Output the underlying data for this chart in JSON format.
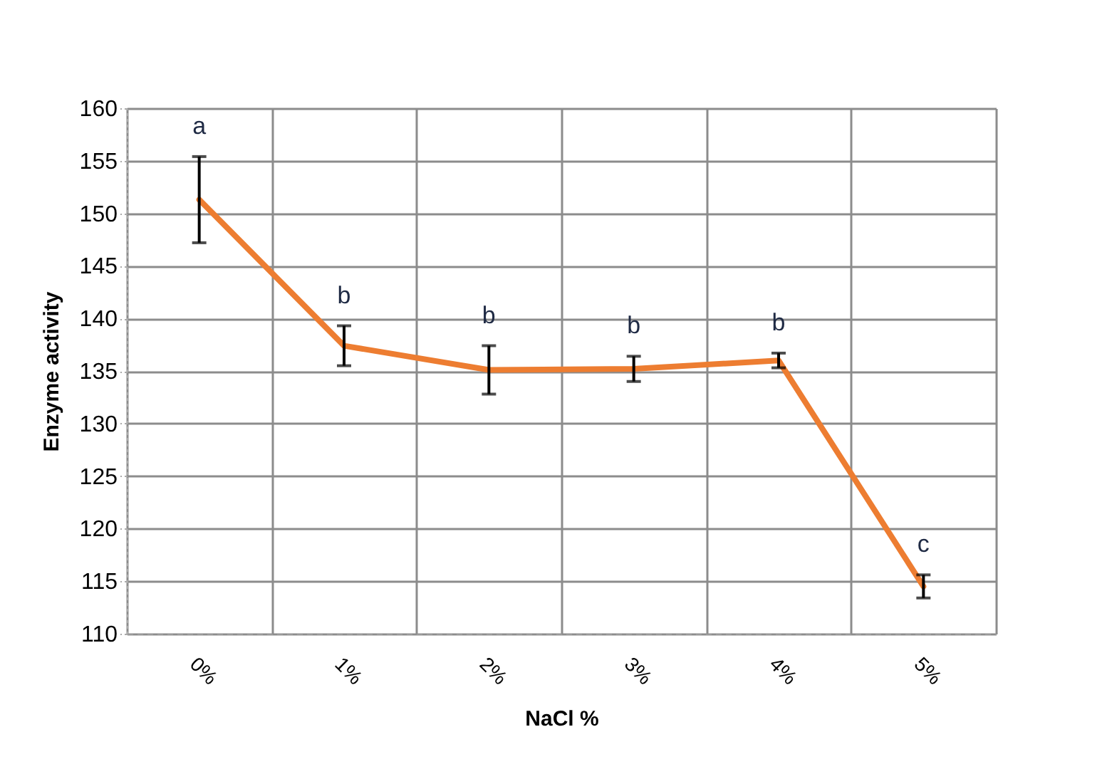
{
  "chart_data": {
    "type": "line",
    "xlabel": "NaCl %",
    "ylabel": "Enzyme activity",
    "categories": [
      "0%",
      "1%",
      "2%",
      "3%",
      "4%",
      "5%"
    ],
    "series": [
      {
        "color": "#ed7d31",
        "values": [
          151.3,
          137.4,
          135.1,
          135.2,
          136.0,
          114.5
        ],
        "errors": [
          4.1,
          1.9,
          2.3,
          1.2,
          0.7,
          1.1
        ]
      }
    ],
    "ylim": [
      110,
      160
    ],
    "yticks": [
      110,
      115,
      120,
      125,
      130,
      135,
      140,
      145,
      150,
      155,
      160
    ],
    "grid": true,
    "marker": "none",
    "line_style": "solid",
    "annotations": [
      {
        "text": "a",
        "x": "0%",
        "y": 155.4
      },
      {
        "text": "b",
        "x": "1%",
        "y": 139.3
      },
      {
        "text": "b",
        "x": "2%",
        "y": 137.4
      },
      {
        "text": "b",
        "x": "3%",
        "y": 136.4
      },
      {
        "text": "b",
        "x": "4%",
        "y": 136.7
      },
      {
        "text": "c",
        "x": "5%",
        "y": 115.6
      }
    ]
  }
}
